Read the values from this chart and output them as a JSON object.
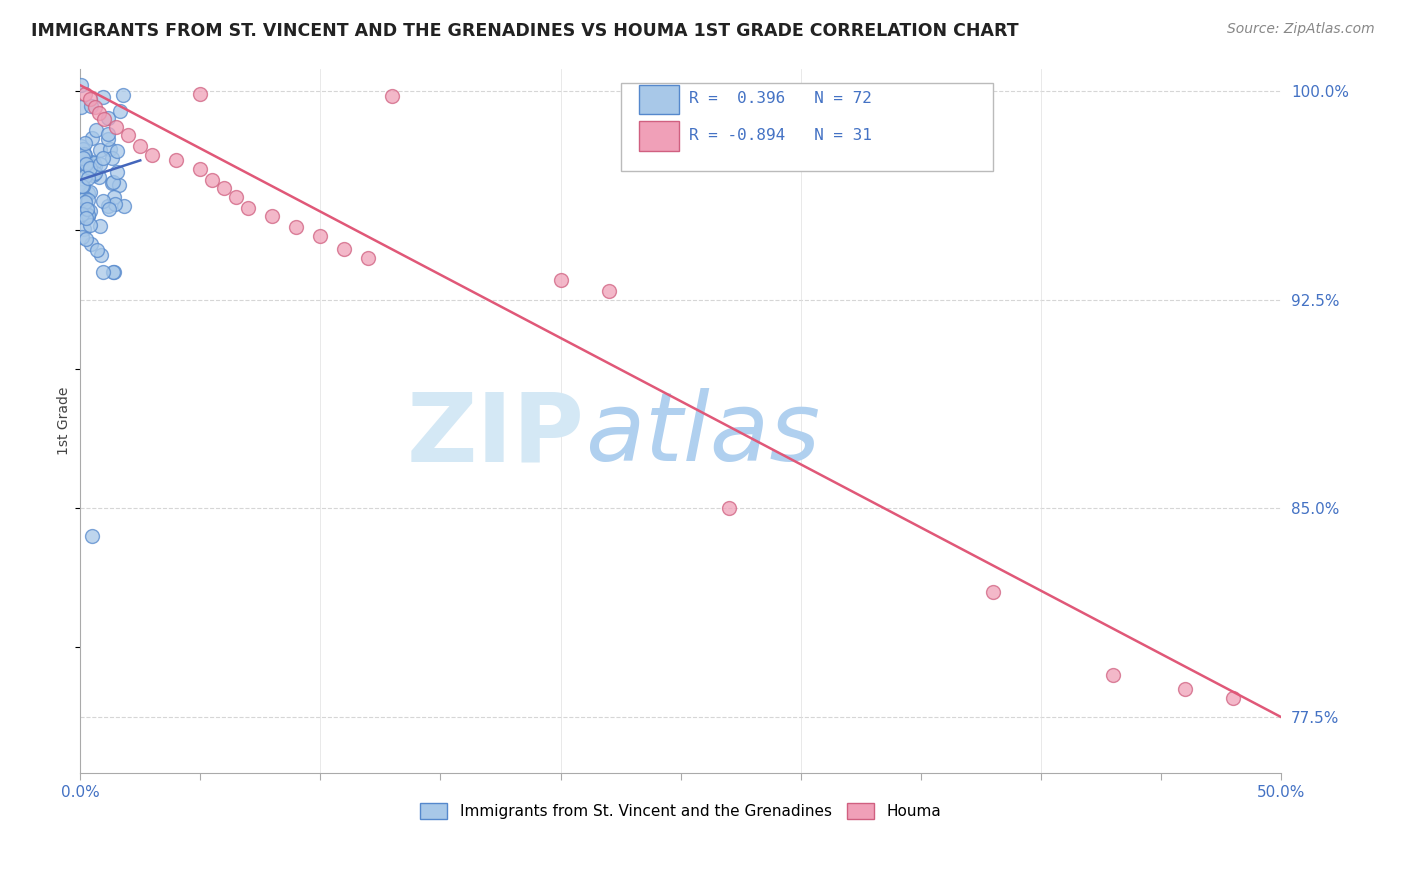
{
  "title": "IMMIGRANTS FROM ST. VINCENT AND THE GRENADINES VS HOUMA 1ST GRADE CORRELATION CHART",
  "source_text": "Source: ZipAtlas.com",
  "ylabel": "1st Grade",
  "xlim": [
    0.0,
    0.5
  ],
  "ylim": [
    0.755,
    1.008
  ],
  "yticks": [
    0.775,
    0.85,
    0.925,
    1.0
  ],
  "yticklabels": [
    "77.5%",
    "85.0%",
    "92.5%",
    "100.0%"
  ],
  "legend_labels": [
    "Immigrants from St. Vincent and the Grenadines",
    "Houma"
  ],
  "blue_color": "#A8C8E8",
  "blue_edge_color": "#5588CC",
  "pink_color": "#F0A0B8",
  "pink_edge_color": "#D06080",
  "blue_line_color": "#4466BB",
  "pink_line_color": "#E05878",
  "watermark_zip_color": "#C8DFF0",
  "watermark_atlas_color": "#A8CBEA",
  "grid_color": "#CCCCCC",
  "background_color": "#FFFFFF",
  "title_color": "#222222",
  "source_color": "#888888",
  "ylabel_color": "#444444",
  "tick_color": "#333333",
  "right_tick_color": "#4472C4",
  "legend_text_color": "#4472C4",
  "blue_r": 0.396,
  "blue_n": 72,
  "pink_r": -0.894,
  "pink_n": 31
}
